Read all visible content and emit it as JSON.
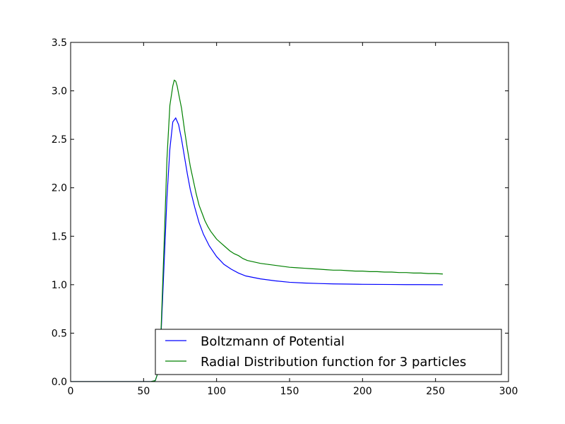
{
  "chart_data": {
    "type": "line",
    "title": "",
    "xlabel": "",
    "ylabel": "",
    "xlim": [
      0,
      300
    ],
    "ylim": [
      0,
      3.5
    ],
    "xticks": [
      0,
      50,
      100,
      150,
      200,
      250,
      300
    ],
    "yticks": [
      0.0,
      0.5,
      1.0,
      1.5,
      2.0,
      2.5,
      3.0,
      3.5
    ],
    "xtick_labels": [
      "0",
      "50",
      "100",
      "150",
      "200",
      "250",
      "300"
    ],
    "ytick_labels": [
      "0.0",
      "0.5",
      "1.0",
      "1.5",
      "2.0",
      "2.5",
      "3.0",
      "3.5"
    ],
    "grid": false,
    "legend_position": "bottom-right",
    "series": [
      {
        "name": "Boltzmann of Potential",
        "color": "#0000ff",
        "x": [
          0,
          55,
          58,
          60,
          62,
          64,
          66,
          68,
          70,
          72,
          74,
          76,
          78,
          80,
          82,
          85,
          88,
          91,
          95,
          100,
          105,
          110,
          115,
          120,
          130,
          140,
          150,
          160,
          170,
          180,
          190,
          200,
          210,
          220,
          230,
          240,
          250,
          255
        ],
        "y": [
          0.0,
          0.0,
          0.01,
          0.1,
          0.5,
          1.2,
          1.9,
          2.4,
          2.68,
          2.72,
          2.65,
          2.5,
          2.32,
          2.14,
          1.98,
          1.8,
          1.64,
          1.52,
          1.4,
          1.29,
          1.21,
          1.16,
          1.12,
          1.09,
          1.06,
          1.04,
          1.025,
          1.017,
          1.012,
          1.008,
          1.006,
          1.004,
          1.003,
          1.002,
          1.001,
          1.001,
          1.0,
          1.0
        ]
      },
      {
        "name": "Radial Distribution function for 3 particles",
        "color": "#008000",
        "x": [
          0,
          55,
          58,
          60,
          62,
          64,
          66,
          68,
          70,
          71,
          72,
          73,
          74,
          76,
          78,
          80,
          82,
          84,
          86,
          88,
          90,
          92,
          94,
          96,
          98,
          100,
          103,
          106,
          109,
          112,
          115,
          118,
          121,
          124,
          127,
          130,
          135,
          140,
          145,
          150,
          155,
          160,
          165,
          170,
          175,
          180,
          185,
          190,
          195,
          200,
          205,
          210,
          215,
          220,
          225,
          230,
          235,
          240,
          245,
          250,
          255
        ],
        "y": [
          0.0,
          0.0,
          0.01,
          0.1,
          0.55,
          1.4,
          2.3,
          2.85,
          3.05,
          3.11,
          3.1,
          3.05,
          2.97,
          2.82,
          2.6,
          2.4,
          2.22,
          2.08,
          1.94,
          1.82,
          1.74,
          1.66,
          1.6,
          1.55,
          1.51,
          1.47,
          1.43,
          1.39,
          1.35,
          1.32,
          1.3,
          1.27,
          1.25,
          1.24,
          1.23,
          1.22,
          1.21,
          1.2,
          1.19,
          1.18,
          1.175,
          1.17,
          1.165,
          1.16,
          1.155,
          1.15,
          1.15,
          1.145,
          1.14,
          1.14,
          1.135,
          1.135,
          1.13,
          1.13,
          1.125,
          1.125,
          1.12,
          1.12,
          1.115,
          1.115,
          1.11
        ]
      }
    ]
  }
}
